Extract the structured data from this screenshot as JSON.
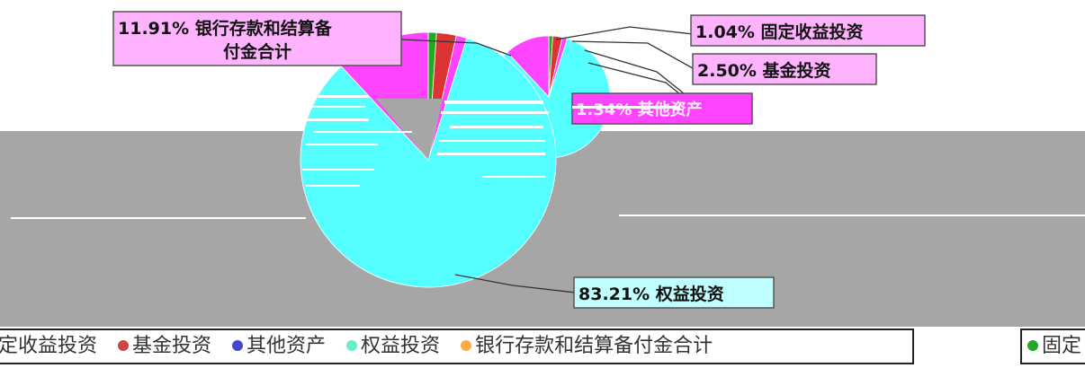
{
  "chart_data": {
    "type": "pie",
    "title": "",
    "slices": [
      {
        "label": "固定收益投资",
        "value": 1.04,
        "display": "1.04% 固定收益投资",
        "color": "#22aa22"
      },
      {
        "label": "基金投资",
        "value": 2.5,
        "display": "2.50% 基金投资",
        "color": "#dd3333"
      },
      {
        "label": "其他资产",
        "value": 1.34,
        "display": "1.34% 其他资产",
        "color": "#ff44ff"
      },
      {
        "label": "权益投资",
        "value": 83.21,
        "display": "83.21% 权益投资",
        "color": "#55ffff"
      },
      {
        "label": "银行存款和结算备付金合计",
        "value": 11.91,
        "display": "11.91% 银行存款和结算备付金合计",
        "color": "#ff44ff"
      }
    ],
    "callouts": {
      "bank": [
        "11.91% 银行存款和结算备",
        "付金合计"
      ],
      "fixed": "1.04% 固定收益投资",
      "fund": "2.50% 基金投资",
      "other": "1.34% 其他资产",
      "equity": "83.21% 权益投资"
    },
    "legend": {
      "placement": "bottom",
      "items": [
        {
          "label": "定收益投资",
          "color": "#22aa22"
        },
        {
          "label": "基金投资",
          "color": "#cc4444"
        },
        {
          "label": "其他资产",
          "color": "#4444cc"
        },
        {
          "label": "权益投资",
          "color": "#66eecc"
        },
        {
          "label": "银行存款和结算备付金合计",
          "color": "#ffaa44"
        }
      ],
      "overflow_item": {
        "label": "固定",
        "color": "#22aa22"
      }
    }
  },
  "colors": {
    "gray_band": "#a6a6a6",
    "callout_pink": "#ffb3ff",
    "callout_cyan": "#bfffff"
  }
}
